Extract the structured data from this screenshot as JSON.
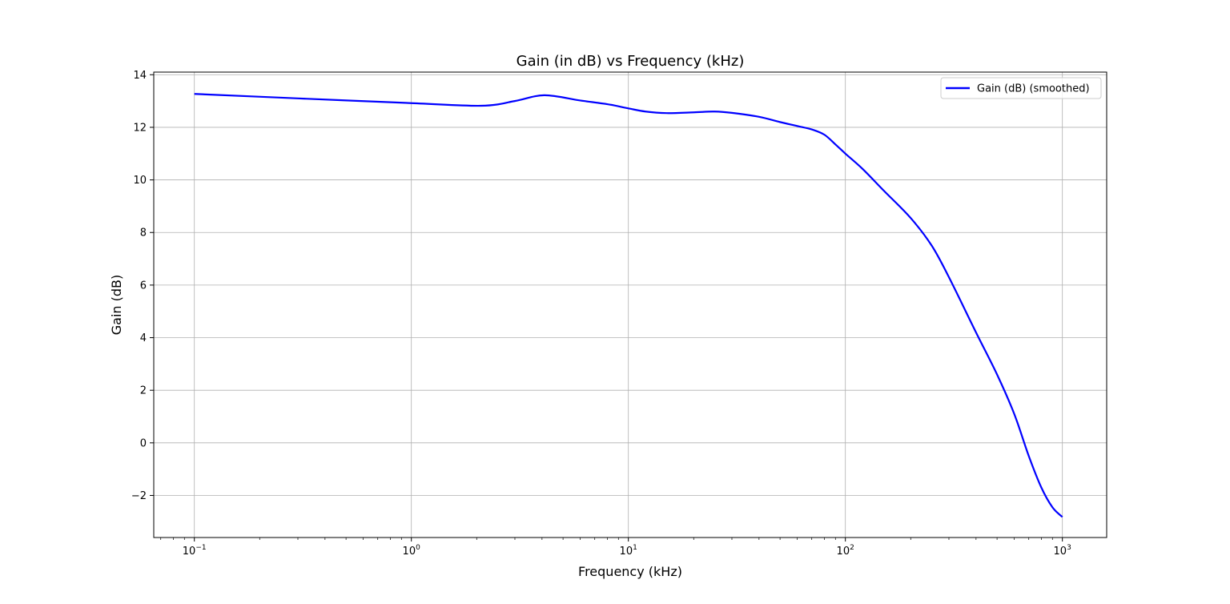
{
  "chart_data": {
    "type": "line",
    "title": "Gain (in dB) vs Frequency (kHz)",
    "xlabel": "Frequency (kHz)",
    "ylabel": "Gain (dB)",
    "xscale": "log",
    "xlim": [
      0.065,
      1600
    ],
    "ylim": [
      -3.6,
      14.1
    ],
    "xticks": [
      {
        "value": 0.1,
        "base": "10",
        "exp": "−1"
      },
      {
        "value": 1,
        "base": "10",
        "exp": "0"
      },
      {
        "value": 10,
        "base": "10",
        "exp": "1"
      },
      {
        "value": 100,
        "base": "10",
        "exp": "2"
      },
      {
        "value": 1000,
        "base": "10",
        "exp": "3"
      }
    ],
    "yticks": [
      {
        "value": -2,
        "label": "−2"
      },
      {
        "value": 0,
        "label": "0"
      },
      {
        "value": 2,
        "label": "2"
      },
      {
        "value": 4,
        "label": "4"
      },
      {
        "value": 6,
        "label": "6"
      },
      {
        "value": 8,
        "label": "8"
      },
      {
        "value": 10,
        "label": "10"
      },
      {
        "value": 12,
        "label": "12"
      },
      {
        "value": 14,
        "label": "14"
      }
    ],
    "grid": true,
    "legend_position": "top-right",
    "series": [
      {
        "name": "Gain (dB) (smoothed)",
        "color": "#0000ff",
        "x": [
          0.1,
          0.3,
          1.0,
          2.1,
          3.0,
          4.1,
          6.0,
          8.0,
          10.0,
          12.0,
          15.0,
          20.0,
          25.0,
          30.0,
          40.0,
          50.0,
          60.0,
          70.0,
          80.0,
          90.0,
          100.0,
          120.0,
          150.0,
          200.0,
          250.0,
          300.0,
          400.0,
          500.0,
          600.0,
          700.0,
          800.0,
          900.0,
          1000.0
        ],
        "y": [
          13.27,
          13.1,
          12.92,
          12.82,
          13.0,
          13.22,
          13.02,
          12.88,
          12.72,
          12.6,
          12.54,
          12.57,
          12.6,
          12.55,
          12.4,
          12.2,
          12.05,
          11.92,
          11.72,
          11.35,
          11.0,
          10.42,
          9.6,
          8.55,
          7.5,
          6.3,
          4.2,
          2.6,
          1.1,
          -0.5,
          -1.7,
          -2.45,
          -2.82
        ]
      }
    ]
  }
}
